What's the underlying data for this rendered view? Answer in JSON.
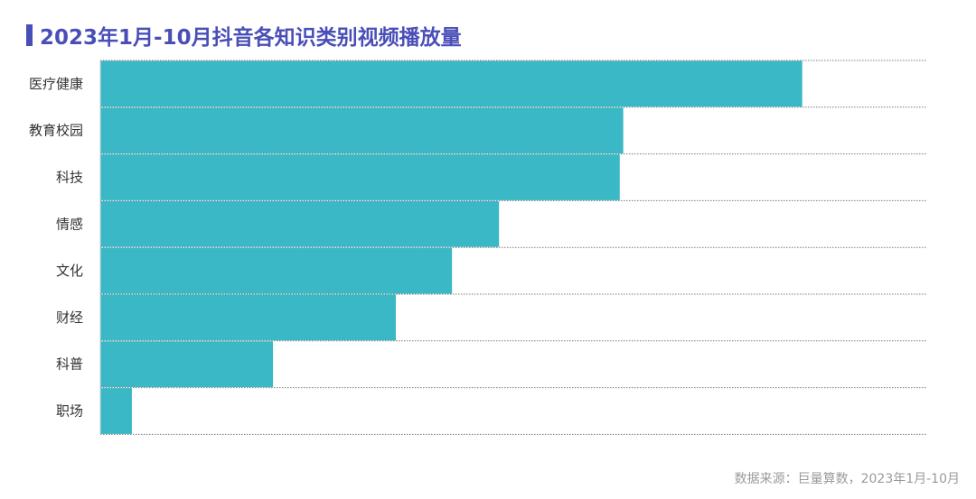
{
  "chart_data": {
    "type": "bar",
    "orientation": "horizontal",
    "title": "2023年1月-10月抖音各知识类别视频播放量",
    "categories": [
      "医疗健康",
      "教育校园",
      "科技",
      "情感",
      "文化",
      "财经",
      "科普",
      "职场"
    ],
    "values": [
      100,
      74.5,
      74,
      56.8,
      50.1,
      42.1,
      24.6,
      4.5
    ],
    "xlim": [
      0,
      117.8
    ],
    "grid": "dotted horizontal",
    "bar_color": "#3ab8c6"
  },
  "source": "数据来源：巨量算数，2023年1月-10月",
  "colors": {
    "title": "#4a4fb8",
    "bar": "#3ab8c6",
    "grid": "#7a7a7a",
    "text": "#333333"
  }
}
